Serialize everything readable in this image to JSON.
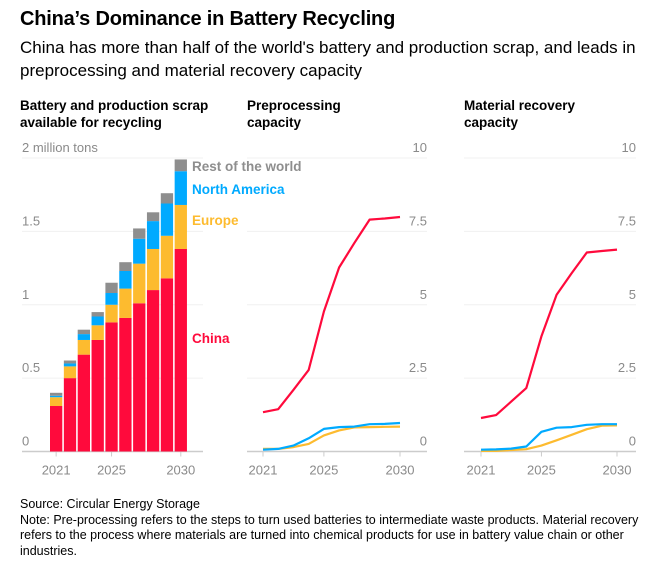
{
  "title": "China’s Dominance in Battery Recycling",
  "subtitle": "China has more than half of the world's battery and production scrap, and leads in preprocessing and material recovery capacity",
  "footer": {
    "source": "Source: Circular Energy Storage",
    "note": "Note: Pre-processing refers to the steps to turn used batteries to intermediate waste products. Material recovery refers to the process where materials are turned into chemical products for use in battery value chain or other industries."
  },
  "colors": {
    "China": "#ff0a3c",
    "Europe": "#fdbb2f",
    "North America": "#00aaff",
    "Rest of the world": "#8e8e8e"
  },
  "chart_data": [
    {
      "type": "bar",
      "stacked": true,
      "title": "Battery and production scrap available for recycling",
      "ylabel": "2 million tons",
      "categories": [
        2021,
        2022,
        2023,
        2024,
        2025,
        2026,
        2027,
        2028,
        2029,
        2030
      ],
      "x_tick_labels": [
        "2021",
        "2025",
        "2030"
      ],
      "y_tick_labels": [
        "0",
        "0.5",
        "1",
        "1.5",
        "2 million tons"
      ],
      "ylim": [
        0,
        2
      ],
      "grid": true,
      "series": [
        {
          "name": "China",
          "values": [
            0.31,
            0.5,
            0.66,
            0.76,
            0.88,
            0.91,
            1.01,
            1.1,
            1.18,
            1.38
          ]
        },
        {
          "name": "Europe",
          "values": [
            0.06,
            0.08,
            0.1,
            0.1,
            0.12,
            0.2,
            0.27,
            0.28,
            0.29,
            0.3
          ]
        },
        {
          "name": "North America",
          "values": [
            0.01,
            0.02,
            0.04,
            0.06,
            0.08,
            0.12,
            0.17,
            0.19,
            0.22,
            0.23
          ]
        },
        {
          "name": "Rest of the world",
          "values": [
            0.02,
            0.02,
            0.03,
            0.03,
            0.07,
            0.06,
            0.07,
            0.06,
            0.07,
            0.08
          ]
        }
      ]
    },
    {
      "type": "line",
      "title": "Preprocessing capacity",
      "x": [
        2021,
        2022,
        2023,
        2024,
        2025,
        2026,
        2027,
        2028,
        2029,
        2030
      ],
      "x_tick_labels": [
        "2021",
        "2025",
        "2030"
      ],
      "y_tick_labels": [
        "0",
        "2.5",
        "5",
        "7.5",
        "10"
      ],
      "ylim": [
        0,
        10
      ],
      "grid": true,
      "series": [
        {
          "name": "China",
          "values": [
            1.34,
            1.44,
            2.1,
            2.78,
            4.77,
            6.27,
            7.1,
            7.9,
            7.94,
            7.99
          ]
        },
        {
          "name": "North America",
          "values": [
            0.06,
            0.09,
            0.2,
            0.45,
            0.77,
            0.83,
            0.85,
            0.93,
            0.94,
            0.97
          ]
        },
        {
          "name": "Europe",
          "values": [
            0.09,
            0.09,
            0.15,
            0.26,
            0.55,
            0.72,
            0.82,
            0.83,
            0.84,
            0.85
          ]
        }
      ]
    },
    {
      "type": "line",
      "title": "Material recovery capacity",
      "x": [
        2021,
        2022,
        2023,
        2024,
        2025,
        2026,
        2027,
        2028,
        2029,
        2030
      ],
      "x_tick_labels": [
        "2021",
        "2025",
        "2030"
      ],
      "y_tick_labels": [
        "0",
        "2.5",
        "5",
        "7.5",
        "10"
      ],
      "ylim": [
        0,
        10
      ],
      "grid": true,
      "series": [
        {
          "name": "China",
          "values": [
            1.14,
            1.24,
            1.7,
            2.16,
            3.92,
            5.34,
            6.08,
            6.78,
            6.83,
            6.88
          ]
        },
        {
          "name": "North America",
          "values": [
            0.06,
            0.07,
            0.1,
            0.17,
            0.67,
            0.81,
            0.83,
            0.91,
            0.93,
            0.93
          ]
        },
        {
          "name": "Europe",
          "values": [
            0.02,
            0.02,
            0.05,
            0.08,
            0.2,
            0.38,
            0.57,
            0.76,
            0.88,
            0.89
          ]
        }
      ]
    }
  ]
}
